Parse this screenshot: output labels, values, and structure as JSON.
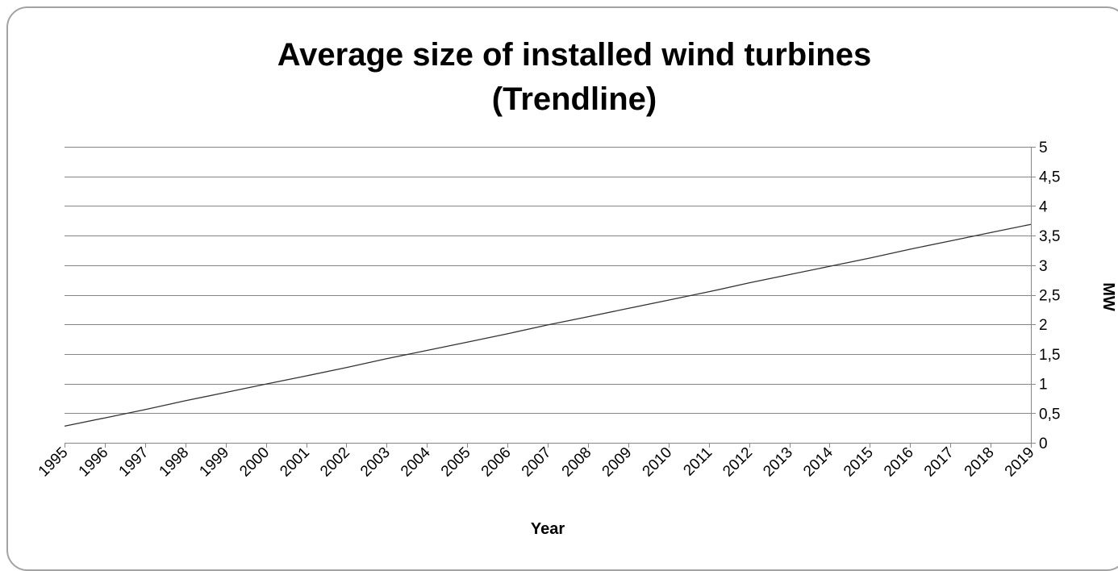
{
  "chart_data": {
    "type": "line",
    "title": [
      "Average size of installed wind turbines",
      "(Trendline)"
    ],
    "xlabel": "Year",
    "ylabel": "MW",
    "categories": [
      "1995",
      "1996",
      "1997",
      "1998",
      "1999",
      "2000",
      "2001",
      "2002",
      "2003",
      "2004",
      "2005",
      "2006",
      "2007",
      "2008",
      "2009",
      "2010",
      "2011",
      "2012",
      "2013",
      "2014",
      "2015",
      "2016",
      "2017",
      "2018",
      "2019"
    ],
    "series": [
      {
        "values": [
          0.28,
          0.42,
          0.56,
          0.71,
          0.85,
          0.99,
          1.13,
          1.27,
          1.42,
          1.56,
          1.7,
          1.84,
          1.99,
          2.13,
          2.27,
          2.41,
          2.55,
          2.7,
          2.84,
          2.98,
          3.12,
          3.27,
          3.41,
          3.55,
          3.69
        ]
      }
    ],
    "ylim": [
      0,
      5
    ],
    "yticks": [
      0,
      0.5,
      1,
      1.5,
      2,
      2.5,
      3,
      3.5,
      4,
      4.5,
      5
    ],
    "ytick_labels": [
      "0",
      "0,5",
      "1",
      "1,5",
      "2",
      "2,5",
      "3",
      "3,5",
      "4",
      "4,5",
      "5"
    ],
    "y_axis_side": "right",
    "grid": true,
    "legend": "none",
    "colors": {
      "line": "#333333",
      "grid": "#868686",
      "frame": "#a3a3a3"
    }
  }
}
